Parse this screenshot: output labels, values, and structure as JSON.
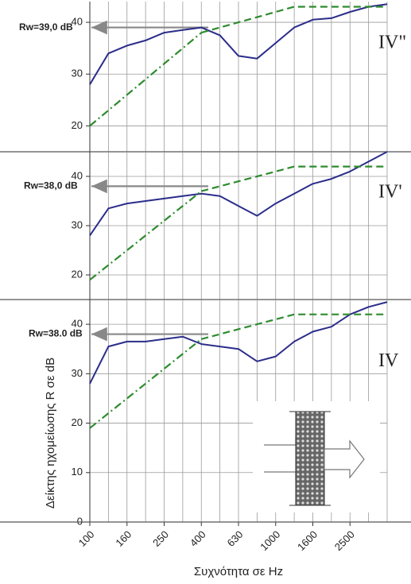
{
  "chart_data": [
    {
      "type": "line",
      "panel_label": "IV\"",
      "categories": [
        null,
        null,
        null,
        null,
        null,
        null,
        null,
        null,
        null,
        null,
        null,
        null,
        null,
        null,
        null,
        null,
        null
      ],
      "series": [
        {
          "color": "#2b2d8a",
          "style": "solid",
          "values": [
            28,
            34,
            35.5,
            36.5,
            38,
            38.5,
            39,
            37.5,
            33.5,
            33,
            36,
            39,
            40.5,
            40.8,
            42,
            43,
            43.5
          ]
        },
        {
          "color": "#2e8b2e",
          "style": "dashdot",
          "values": [
            20,
            23,
            26,
            29,
            32,
            35,
            38,
            null,
            null,
            null,
            null,
            null,
            null,
            null,
            null,
            null,
            null
          ]
        },
        {
          "color": "#2e8b2e",
          "style": "dashed",
          "values": [
            null,
            null,
            null,
            null,
            null,
            null,
            38,
            39,
            40,
            41,
            42,
            43,
            43,
            43,
            43,
            43,
            43
          ]
        }
      ],
      "annotation": {
        "text": "Rw=39,0 dB",
        "value": 39
      },
      "ylim": [
        15,
        44
      ],
      "yticks": [
        20,
        30,
        40
      ],
      "grid": true
    },
    {
      "type": "line",
      "panel_label": "IV'",
      "categories": [
        null,
        null,
        null,
        null,
        null,
        null,
        null,
        null,
        null,
        null,
        null,
        null,
        null,
        null,
        null,
        null,
        null
      ],
      "series": [
        {
          "color": "#2b2d8a",
          "style": "solid",
          "values": [
            28,
            33.5,
            34.5,
            35,
            35.5,
            36,
            36.5,
            36,
            34,
            32,
            34.5,
            36.5,
            38.5,
            39.5,
            41,
            43,
            45
          ]
        },
        {
          "color": "#2e8b2e",
          "style": "dashdot",
          "values": [
            19,
            22,
            25,
            28,
            31,
            34,
            37,
            null,
            null,
            null,
            null,
            null,
            null,
            null,
            null,
            null,
            null
          ]
        },
        {
          "color": "#2e8b2e",
          "style": "dashed",
          "values": [
            null,
            null,
            null,
            null,
            null,
            null,
            37,
            38,
            39,
            40,
            41,
            42,
            42,
            42,
            42,
            42,
            42
          ]
        }
      ],
      "annotation": {
        "text": "Rw=38,0 dB",
        "value": 38
      },
      "ylim": [
        15,
        45
      ],
      "yticks": [
        20,
        30,
        40
      ],
      "grid": true
    },
    {
      "type": "line",
      "panel_label": "IV",
      "x_label": "Συχνότητα σε Hz",
      "y_label": "Δείκτης ηχομείωσης R σε dB",
      "categories": [
        "100",
        null,
        "160",
        null,
        "250",
        null,
        "400",
        null,
        "630",
        null,
        "1000",
        null,
        "1600",
        null,
        "2500",
        null,
        null
      ],
      "series": [
        {
          "color": "#2b2d8a",
          "style": "solid",
          "values": [
            28,
            35.5,
            36.5,
            36.5,
            37,
            37.5,
            36,
            35.5,
            35,
            32.5,
            33.5,
            36.5,
            38.5,
            39.5,
            42,
            43.5,
            44.5
          ]
        },
        {
          "color": "#2e8b2e",
          "style": "dashdot",
          "values": [
            19,
            22,
            25,
            28,
            31,
            34,
            37,
            null,
            null,
            null,
            null,
            null,
            null,
            null,
            null,
            null,
            null
          ]
        },
        {
          "color": "#2e8b2e",
          "style": "dashed",
          "values": [
            null,
            null,
            null,
            null,
            null,
            null,
            37,
            38,
            39,
            40,
            41,
            42,
            42,
            42,
            42,
            42,
            42
          ]
        }
      ],
      "annotation": {
        "text": "Rw=38.0 dB",
        "value": 38
      },
      "ylim": [
        0,
        45
      ],
      "yticks": [
        0,
        10,
        20,
        30,
        40
      ],
      "grid": true
    }
  ]
}
